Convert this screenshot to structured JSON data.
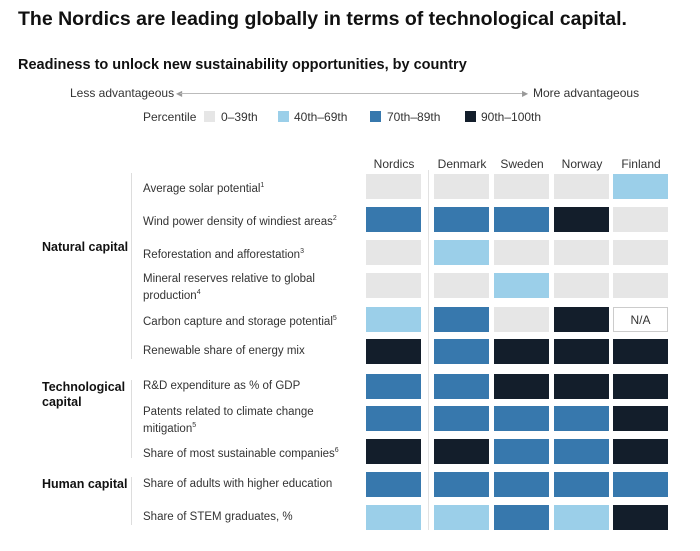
{
  "title": "The Nordics are leading globally in terms of technological capital.",
  "chart_data": {
    "type": "heatmap",
    "title": "The Nordics are leading globally in terms of technological capital.",
    "subtitle": "Readiness to unlock new sustainability opportunities, by country",
    "axis": {
      "left": "Less advantageous",
      "right": "More advantageous"
    },
    "legend": {
      "label": "Percentile",
      "levels": [
        {
          "label": "0–39th",
          "color": "#e6e6e6"
        },
        {
          "label": "40th–69th",
          "color": "#9bcfe9"
        },
        {
          "label": "70th–89th",
          "color": "#3778ad"
        },
        {
          "label": "90th–100th",
          "color": "#131e2b"
        }
      ]
    },
    "columns": [
      "Nordics",
      "Denmark",
      "Sweden",
      "Norway",
      "Finland"
    ],
    "na_label": "N/A",
    "groups": [
      {
        "name": "Natural capital",
        "rows": [
          0,
          1,
          2,
          3,
          4,
          5
        ]
      },
      {
        "name": "Technological capital",
        "rows": [
          6,
          7,
          8
        ]
      },
      {
        "name": "Human capital",
        "rows": [
          9,
          10
        ]
      }
    ],
    "rows": [
      {
        "label": "Average solar potential",
        "sup": "1",
        "values": [
          0,
          0,
          0,
          0,
          1
        ]
      },
      {
        "label": "Wind power density of windiest areas",
        "sup": "2",
        "values": [
          2,
          2,
          2,
          3,
          0
        ]
      },
      {
        "label": "Reforestation and afforestation",
        "sup": "3",
        "values": [
          0,
          1,
          0,
          0,
          0
        ]
      },
      {
        "label": "Mineral reserves relative to global production",
        "sup": "4",
        "values": [
          0,
          0,
          1,
          0,
          0
        ]
      },
      {
        "label": "Carbon capture and storage potential",
        "sup": "5",
        "values": [
          1,
          2,
          0,
          3,
          null
        ]
      },
      {
        "label": "Renewable share of energy mix",
        "sup": "",
        "values": [
          3,
          2,
          3,
          3,
          3
        ]
      },
      {
        "label": "R&D expenditure as % of GDP",
        "sup": "",
        "values": [
          2,
          2,
          3,
          3,
          3
        ]
      },
      {
        "label": "Patents related to climate change mitigation",
        "sup": "5",
        "values": [
          2,
          2,
          2,
          2,
          3
        ]
      },
      {
        "label": "Share of most sustainable companies",
        "sup": "6",
        "values": [
          3,
          3,
          2,
          2,
          3
        ]
      },
      {
        "label": "Share of adults with higher education",
        "sup": "",
        "values": [
          2,
          2,
          2,
          2,
          2
        ]
      },
      {
        "label": "Share of STEM graduates, %",
        "sup": "",
        "values": [
          1,
          1,
          2,
          1,
          3
        ]
      }
    ]
  }
}
